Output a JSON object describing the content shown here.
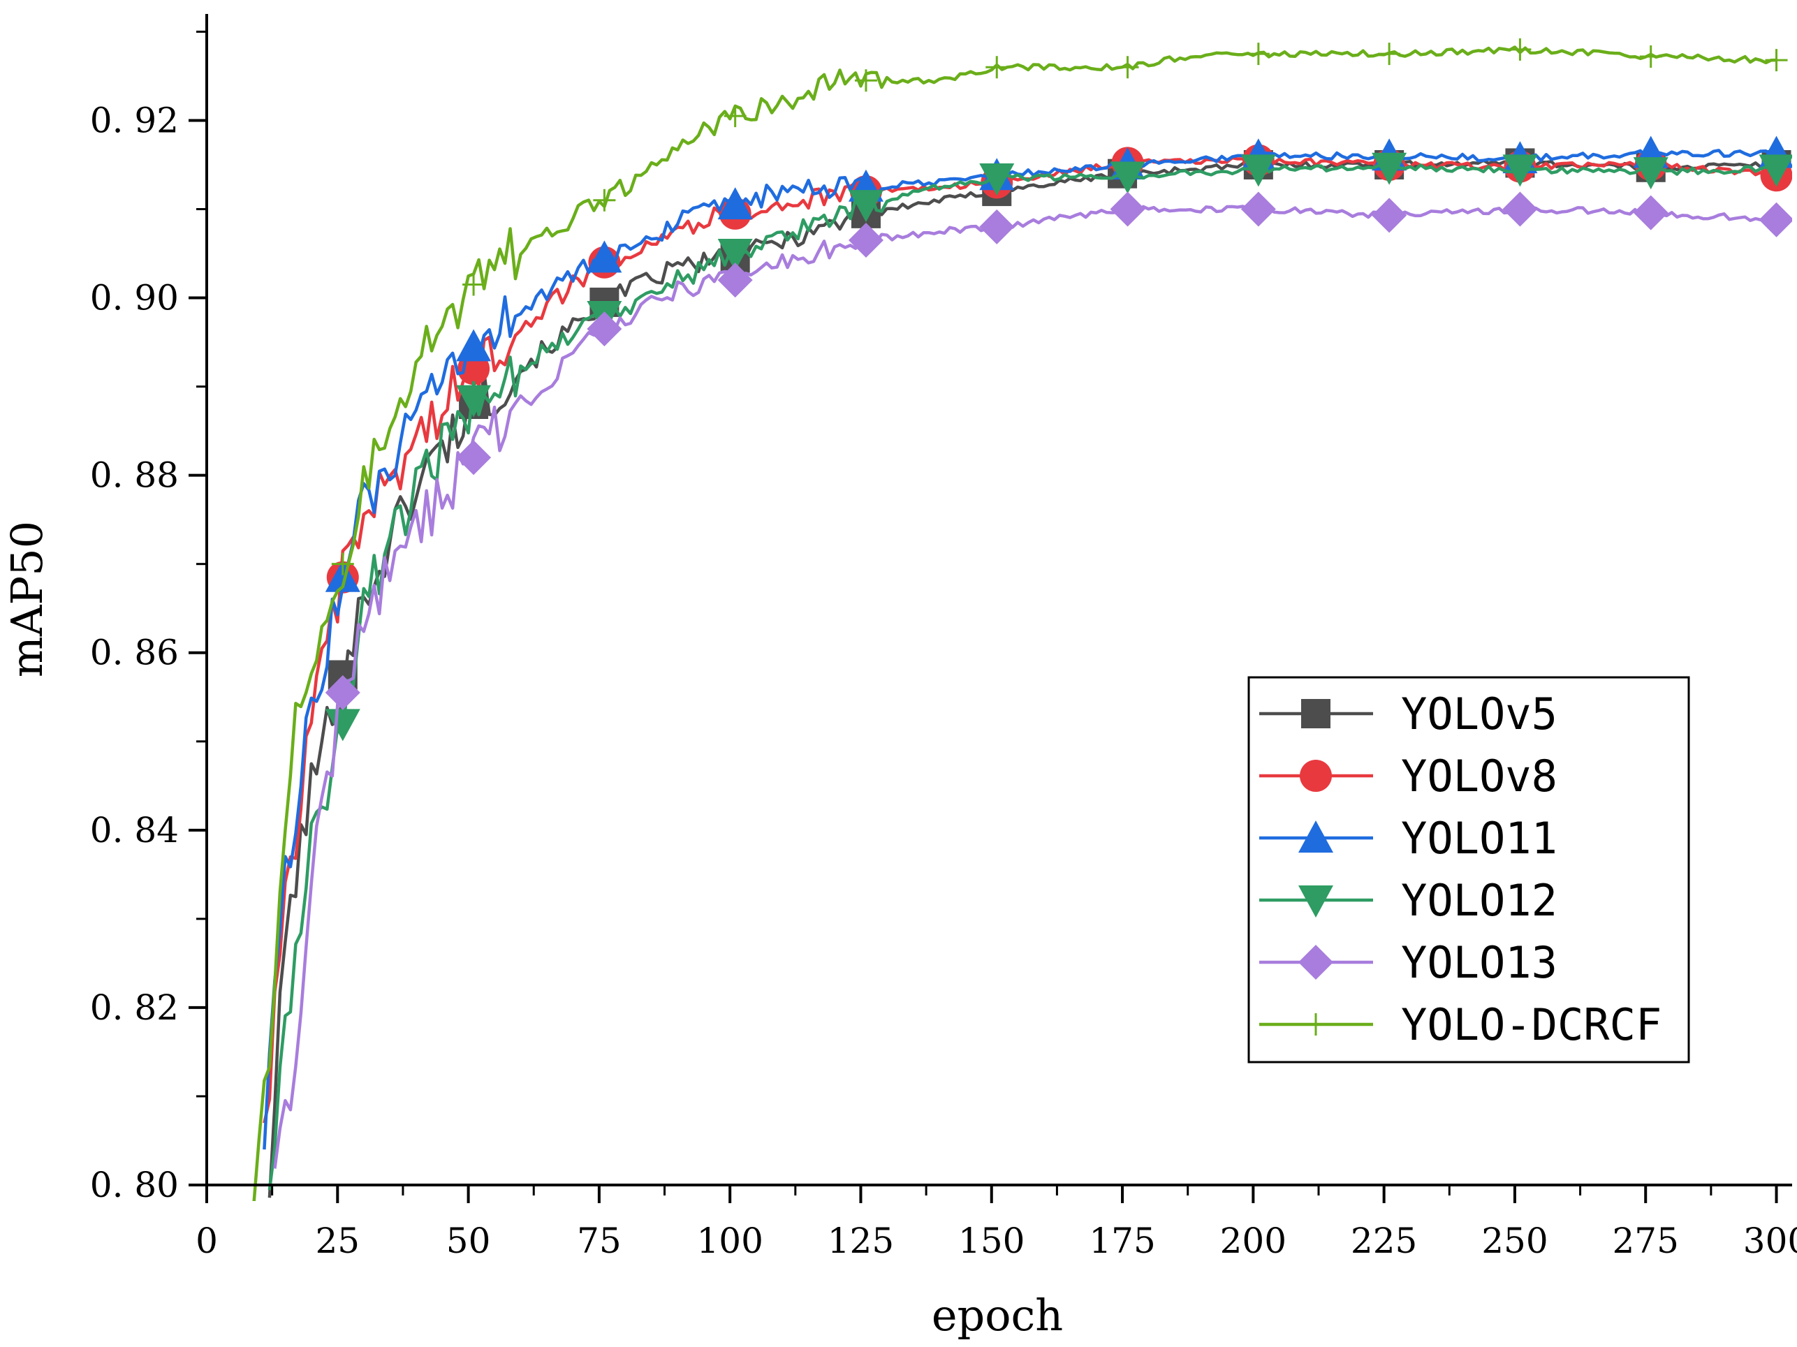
{
  "chart_data": {
    "type": "line",
    "title": "",
    "xlabel": "epoch",
    "ylabel": "mAP50",
    "xlim": [
      0,
      303
    ],
    "ylim": [
      0.8,
      0.932
    ],
    "xticks": [
      0,
      25,
      50,
      75,
      100,
      125,
      150,
      175,
      200,
      225,
      250,
      275,
      300
    ],
    "xtick_labels": [
      "0",
      "25",
      "50",
      "75",
      "100",
      "125",
      "150",
      "175",
      "200",
      "225",
      "250",
      "275",
      "300"
    ],
    "yticks": [
      0.8,
      0.82,
      0.84,
      0.86,
      0.88,
      0.9,
      0.92
    ],
    "ytick_labels": [
      "0. 80",
      "0. 82",
      "0. 84",
      "0. 86",
      "0. 88",
      "0. 90",
      "0. 92"
    ],
    "legend_position": "lower-right",
    "grid": false,
    "series": [
      {
        "name": "YOLOv5",
        "color": "#4d4d4d",
        "marker": "square",
        "x": [
          12,
          15,
          20,
          26,
          30,
          40,
          51,
          60,
          76,
          90,
          101,
          110,
          126,
          140,
          151,
          175,
          201,
          226,
          251,
          276,
          300
        ],
        "y": [
          0.8,
          0.828,
          0.845,
          0.8575,
          0.866,
          0.879,
          0.888,
          0.892,
          0.8995,
          0.9035,
          0.9045,
          0.9065,
          0.9095,
          0.911,
          0.912,
          0.914,
          0.915,
          0.915,
          0.9152,
          0.9147,
          0.915
        ]
      },
      {
        "name": "YOLOv8",
        "color": "#e8393f",
        "marker": "circle",
        "x": [
          11,
          15,
          20,
          26,
          30,
          40,
          51,
          60,
          76,
          90,
          101,
          110,
          126,
          140,
          151,
          176,
          201,
          226,
          251,
          276,
          300
        ],
        "y": [
          0.806,
          0.832,
          0.852,
          0.8685,
          0.875,
          0.884,
          0.892,
          0.897,
          0.904,
          0.908,
          0.9095,
          0.9105,
          0.912,
          0.9125,
          0.913,
          0.9152,
          0.9155,
          0.915,
          0.9148,
          0.915,
          0.9138
        ]
      },
      {
        "name": "YOLO11",
        "color": "#1f6cdf",
        "marker": "triangle-up",
        "x": [
          11,
          15,
          20,
          26,
          30,
          40,
          51,
          60,
          76,
          90,
          101,
          110,
          126,
          140,
          151,
          176,
          201,
          226,
          251,
          276,
          300
        ],
        "y": [
          0.807,
          0.834,
          0.854,
          0.8685,
          0.876,
          0.886,
          0.8945,
          0.899,
          0.9045,
          0.9085,
          0.9105,
          0.912,
          0.9125,
          0.913,
          0.9138,
          0.915,
          0.916,
          0.916,
          0.9157,
          0.9163,
          0.9163
        ]
      },
      {
        "name": "YOLO12",
        "color": "#2e9c63",
        "marker": "triangle-down",
        "x": [
          12,
          16,
          20,
          26,
          30,
          40,
          51,
          60,
          76,
          90,
          101,
          110,
          126,
          140,
          151,
          176,
          201,
          226,
          251,
          276,
          300
        ],
        "y": [
          0.8,
          0.822,
          0.838,
          0.852,
          0.866,
          0.878,
          0.8885,
          0.8925,
          0.898,
          0.902,
          0.905,
          0.907,
          0.9105,
          0.9125,
          0.9135,
          0.9137,
          0.9145,
          0.9147,
          0.9145,
          0.9142,
          0.9145
        ]
      },
      {
        "name": "YOLO13",
        "color": "#a87ddd",
        "marker": "diamond",
        "x": [
          13,
          17,
          20,
          26,
          30,
          40,
          51,
          60,
          76,
          90,
          101,
          110,
          126,
          140,
          151,
          176,
          201,
          226,
          251,
          276,
          300
        ],
        "y": [
          0.8,
          0.815,
          0.834,
          0.8555,
          0.864,
          0.874,
          0.882,
          0.888,
          0.8965,
          0.901,
          0.902,
          0.904,
          0.9065,
          0.9075,
          0.908,
          0.91,
          0.91,
          0.9093,
          0.91,
          0.9096,
          0.9088
        ]
      },
      {
        "name": "YOLO-DCRCF",
        "color": "#6aae1a",
        "marker": "plus",
        "x": [
          9,
          12,
          15,
          18,
          22,
          26,
          30,
          35,
          40,
          51,
          60,
          76,
          90,
          101,
          110,
          120,
          126,
          140,
          151,
          165,
          176,
          190,
          201,
          226,
          251,
          276,
          300
        ],
        "y": [
          0.8,
          0.815,
          0.84,
          0.857,
          0.862,
          0.87,
          0.879,
          0.887,
          0.893,
          0.9015,
          0.9055,
          0.911,
          0.917,
          0.9205,
          0.922,
          0.9245,
          0.9245,
          0.9245,
          0.926,
          0.926,
          0.926,
          0.9275,
          0.9275,
          0.9275,
          0.928,
          0.9272,
          0.9268
        ]
      }
    ]
  }
}
